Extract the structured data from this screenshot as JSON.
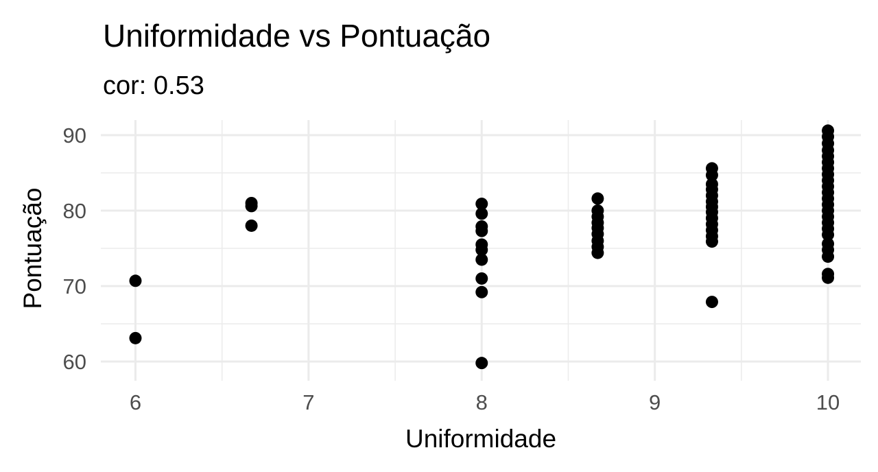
{
  "chart_data": {
    "type": "scatter",
    "title": "Uniformidade vs Pontuação",
    "subtitle": "cor: 0.53",
    "x_label": "Uniformidade",
    "y_label": "Pontuação",
    "color": "#000000",
    "grid": true,
    "x": [
      6,
      6,
      6.67,
      6.67,
      6.67,
      8,
      8,
      8,
      8,
      8,
      8,
      8,
      8,
      8,
      8,
      8.67,
      8.67,
      8.67,
      8.67,
      8.67,
      8.67,
      8.67,
      8.67,
      8.67,
      9.33,
      9.33,
      9.33,
      9.33,
      9.33,
      9.33,
      9.33,
      9.33,
      9.33,
      9.33,
      9.33,
      9.33,
      9.33,
      9.33,
      10,
      10,
      10,
      10,
      10,
      10,
      10,
      10,
      10,
      10,
      10,
      10,
      10,
      10,
      10,
      10,
      10,
      10,
      10,
      10,
      10,
      10,
      10
    ],
    "values": [
      70.7,
      63.1,
      81.0,
      80.6,
      78.0,
      80.9,
      79.6,
      77.9,
      77.3,
      75.5,
      74.8,
      73.5,
      71.0,
      69.2,
      59.8,
      81.6,
      80.0,
      79.2,
      78.4,
      77.7,
      76.9,
      76.0,
      75.2,
      74.4,
      85.6,
      84.7,
      83.5,
      82.8,
      82.0,
      81.2,
      80.5,
      79.8,
      79.0,
      78.2,
      77.4,
      76.6,
      75.9,
      67.9,
      90.6,
      89.8,
      88.9,
      88.0,
      87.2,
      86.4,
      85.6,
      84.8,
      84.0,
      83.2,
      82.4,
      81.6,
      80.8,
      80.0,
      79.2,
      78.4,
      77.6,
      76.8,
      75.6,
      74.8,
      73.9,
      71.6,
      71.1
    ],
    "xlim": [
      5.8,
      10.19
    ],
    "ylim": [
      57.45,
      92
    ],
    "xticks": [
      6,
      7,
      8,
      9,
      10
    ],
    "yticks": [
      60,
      70,
      80,
      90
    ],
    "xminor": [
      6.5,
      7.5,
      8.5,
      9.5
    ],
    "yminor": [
      65,
      75,
      85
    ]
  }
}
